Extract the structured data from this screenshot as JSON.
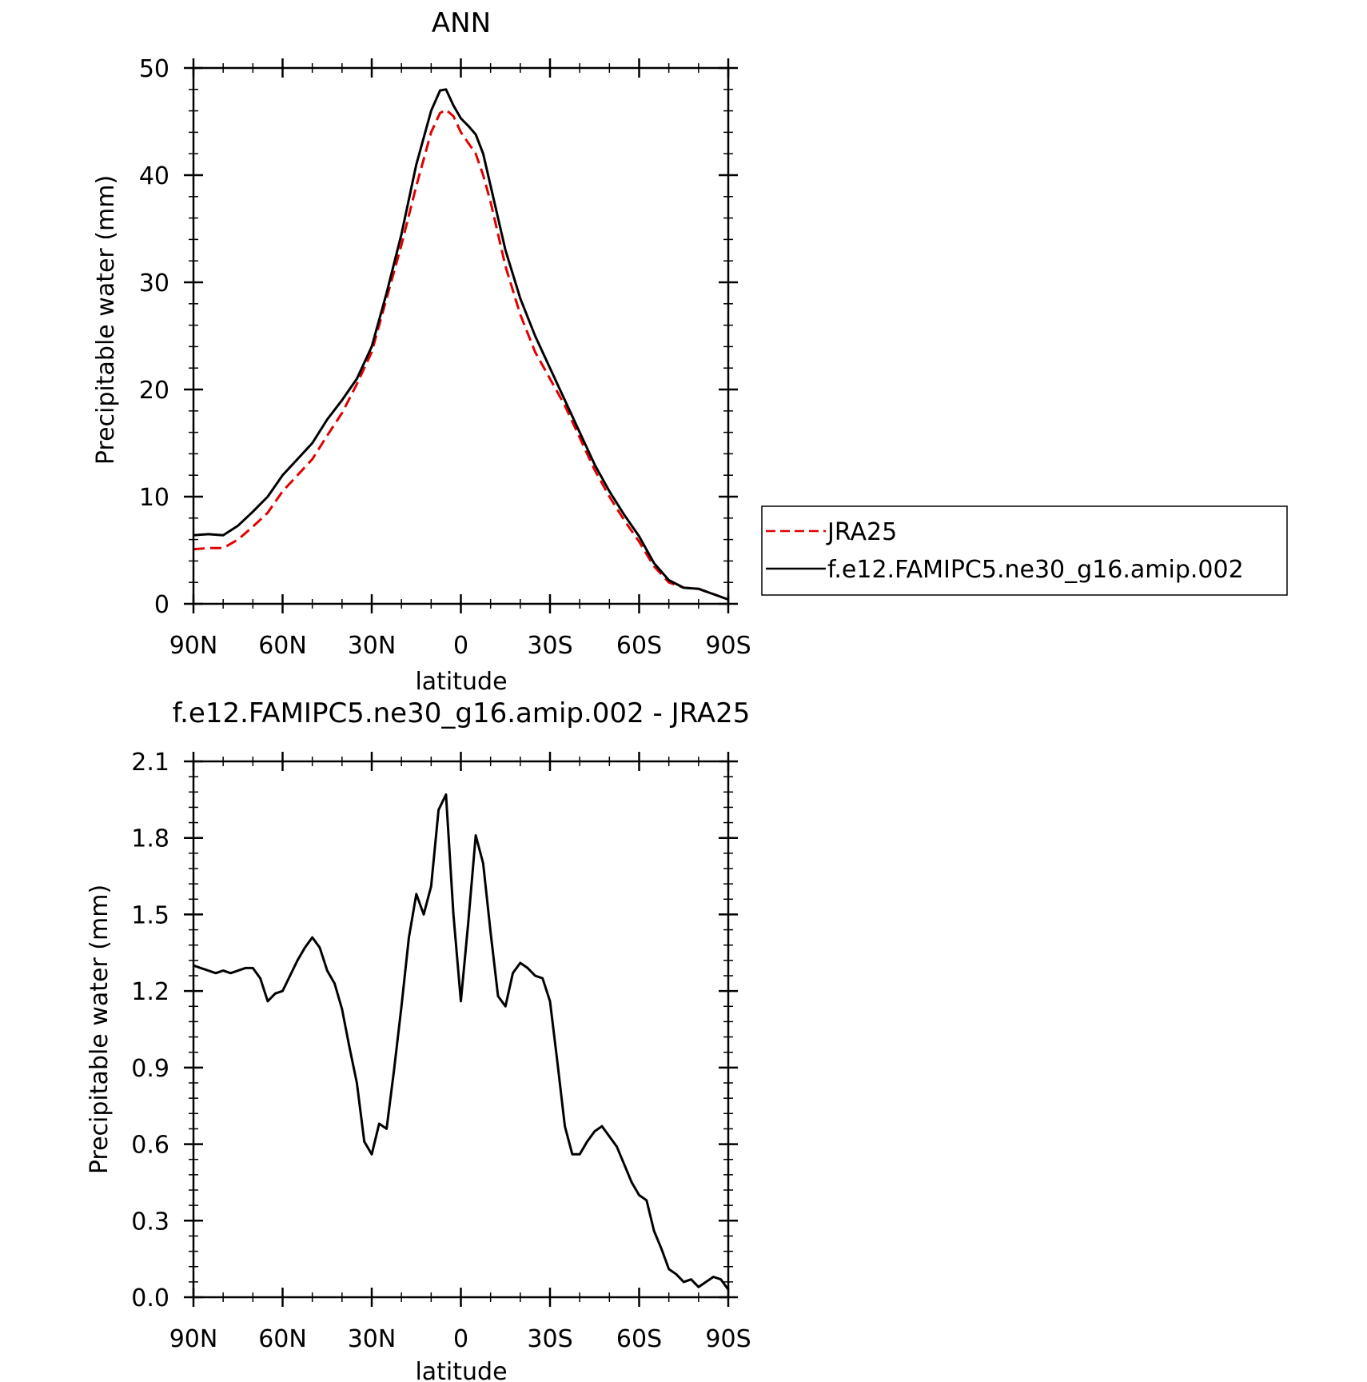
{
  "chart_data": [
    {
      "type": "line",
      "title": "ANN",
      "xlabel": "latitude",
      "ylabel": "Precipitable water (mm)",
      "xlim": [
        90,
        -90
      ],
      "ylim": [
        0,
        50
      ],
      "yticks": [
        0,
        10,
        20,
        30,
        40,
        50
      ],
      "xticks": [
        {
          "value": 90,
          "label": "90N"
        },
        {
          "value": 60,
          "label": "60N"
        },
        {
          "value": 30,
          "label": "30N"
        },
        {
          "value": 0,
          "label": "0"
        },
        {
          "value": -30,
          "label": "30S"
        },
        {
          "value": -60,
          "label": "60S"
        },
        {
          "value": -90,
          "label": "90S"
        }
      ],
      "legend_position": "right",
      "series": [
        {
          "name": "JRA25",
          "color": "#e00000",
          "dash": "dashed",
          "x": [
            90,
            85,
            80,
            75,
            70,
            65,
            60,
            55,
            50,
            45,
            40,
            35,
            30,
            25,
            20,
            15,
            10,
            7,
            5,
            2.5,
            0,
            -2.5,
            -5,
            -7.5,
            -10,
            -15,
            -20,
            -25,
            -30,
            -35,
            -40,
            -45,
            -50,
            -55,
            -60,
            -65,
            -70,
            -75,
            -80,
            -85,
            -90
          ],
          "y": [
            5.1,
            5.2,
            5.2,
            6.0,
            7.2,
            8.5,
            10.5,
            12.0,
            13.5,
            15.7,
            17.8,
            20.5,
            23.5,
            28.5,
            33.5,
            39.0,
            44.0,
            45.8,
            46.1,
            45.5,
            44.0,
            43.0,
            42.0,
            40.0,
            37.5,
            31.5,
            27.0,
            23.5,
            21.0,
            18.5,
            15.5,
            12.5,
            10.0,
            7.8,
            5.8,
            3.5,
            2.0,
            1.5,
            1.4,
            0.9,
            0.4
          ]
        },
        {
          "name": "f.e12.FAMIPC5.ne30_g16.amip.002",
          "color": "#000000",
          "dash": "solid",
          "x": [
            90,
            85,
            80,
            75,
            70,
            65,
            60,
            55,
            50,
            45,
            40,
            35,
            30,
            25,
            20,
            15,
            10,
            7,
            5,
            2.5,
            0,
            -2.5,
            -5,
            -7.5,
            -10,
            -15,
            -20,
            -25,
            -30,
            -35,
            -40,
            -45,
            -50,
            -55,
            -60,
            -65,
            -70,
            -75,
            -80,
            -85,
            -90
          ],
          "y": [
            6.4,
            6.5,
            6.4,
            7.3,
            8.6,
            10.0,
            12.0,
            13.5,
            15.0,
            17.2,
            19.0,
            21.0,
            24.0,
            29.0,
            34.5,
            41.0,
            46.0,
            47.9,
            48.0,
            46.5,
            45.3,
            44.6,
            43.8,
            42.0,
            39.0,
            33.0,
            28.5,
            25.0,
            22.0,
            19.0,
            16.0,
            13.0,
            10.5,
            8.3,
            6.3,
            3.8,
            2.2,
            1.5,
            1.4,
            0.9,
            0.4
          ]
        }
      ]
    },
    {
      "type": "line",
      "title": "f.e12.FAMIPC5.ne30_g16.amip.002 - JRA25",
      "xlabel": "latitude",
      "ylabel": "Precipitable water (mm)",
      "xlim": [
        90,
        -90
      ],
      "ylim": [
        0,
        2.1
      ],
      "yticks": [
        "0.0",
        "0.3",
        "0.6",
        "0.9",
        "1.2",
        "1.5",
        "1.8",
        "2.1"
      ],
      "xticks": [
        {
          "value": 90,
          "label": "90N"
        },
        {
          "value": 60,
          "label": "60N"
        },
        {
          "value": 30,
          "label": "30N"
        },
        {
          "value": 0,
          "label": "0"
        },
        {
          "value": -30,
          "label": "30S"
        },
        {
          "value": -60,
          "label": "60S"
        },
        {
          "value": -90,
          "label": "90S"
        }
      ],
      "series": [
        {
          "color": "#000000",
          "dash": "solid",
          "x": [
            90,
            87.5,
            85,
            82.5,
            80,
            77.5,
            75,
            72.5,
            70,
            67.5,
            65,
            62.5,
            60,
            57.5,
            55,
            52.5,
            50,
            47.5,
            45,
            42.5,
            40,
            37.5,
            35,
            32.5,
            30,
            27.5,
            25,
            22.5,
            20,
            17.5,
            15,
            12.5,
            10,
            7.5,
            5,
            2.5,
            0,
            -2.5,
            -5,
            -7.5,
            -10,
            -12.5,
            -15,
            -17.5,
            -20,
            -22.5,
            -25,
            -27.5,
            -30,
            -32.5,
            -35,
            -37.5,
            -40,
            -42.5,
            -45,
            -47.5,
            -50,
            -52.5,
            -55,
            -57.5,
            -60,
            -62.5,
            -65,
            -67.5,
            -70,
            -72.5,
            -75,
            -77.5,
            -80,
            -82.5,
            -85,
            -87.5,
            -90
          ],
          "y": [
            1.3,
            1.29,
            1.28,
            1.27,
            1.28,
            1.27,
            1.28,
            1.29,
            1.29,
            1.25,
            1.16,
            1.19,
            1.2,
            1.26,
            1.32,
            1.37,
            1.41,
            1.37,
            1.28,
            1.23,
            1.13,
            0.98,
            0.84,
            0.61,
            0.56,
            0.68,
            0.66,
            0.89,
            1.14,
            1.41,
            1.58,
            1.5,
            1.61,
            1.91,
            1.97,
            1.5,
            1.16,
            1.47,
            1.81,
            1.7,
            1.43,
            1.18,
            1.14,
            1.27,
            1.31,
            1.29,
            1.26,
            1.25,
            1.16,
            0.92,
            0.67,
            0.56,
            0.56,
            0.61,
            0.65,
            0.67,
            0.63,
            0.59,
            0.52,
            0.45,
            0.4,
            0.38,
            0.26,
            0.19,
            0.11,
            0.09,
            0.06,
            0.07,
            0.04,
            0.06,
            0.08,
            0.07,
            0.03
          ]
        }
      ]
    }
  ]
}
